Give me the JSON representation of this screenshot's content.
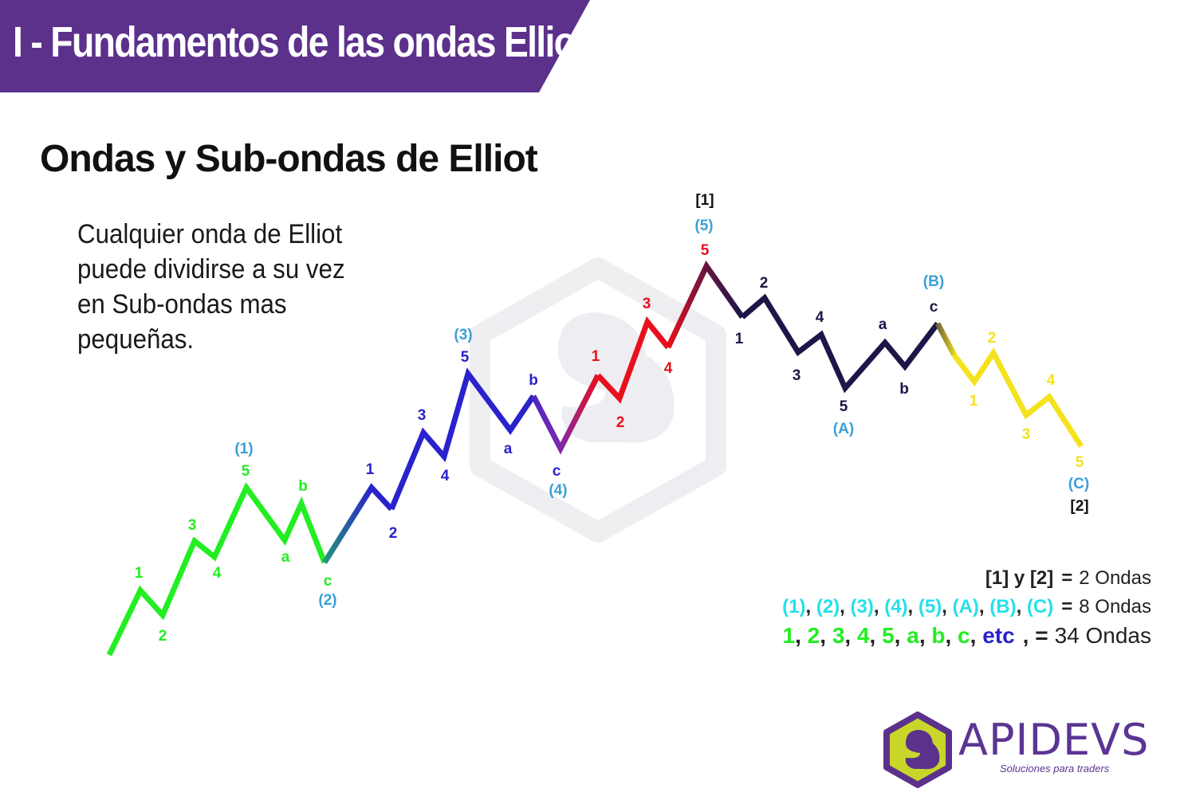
{
  "banner": {
    "title": "I - Fundamentos de las ondas Elliot",
    "color": "#5b318c"
  },
  "subtitle": "Ondas y Sub-ondas de Elliot",
  "description": "Cualquier onda de Elliot puede dividirse a su vez en Sub-ondas mas pequeñas.",
  "colors": {
    "green": "#22ee22",
    "blue": "#2a22cc",
    "red": "#e8101c",
    "navy": "#1c1748",
    "yellow": "#f4e21e",
    "cyan": "#3aa0d8",
    "black": "#111111",
    "purple": "#5b318c"
  },
  "wave_labels": [
    {
      "text": "1",
      "color": "green"
    },
    {
      "text": "2",
      "color": "green"
    },
    {
      "text": "3",
      "color": "green"
    },
    {
      "text": "4",
      "color": "green"
    },
    {
      "text": "5",
      "color": "green"
    },
    {
      "text": "(1)",
      "color": "cyan"
    },
    {
      "text": "a",
      "color": "green"
    },
    {
      "text": "b",
      "color": "green"
    },
    {
      "text": "c",
      "color": "green"
    },
    {
      "text": "(2)",
      "color": "cyan"
    },
    {
      "text": "1",
      "color": "blue"
    },
    {
      "text": "2",
      "color": "blue"
    },
    {
      "text": "3",
      "color": "blue"
    },
    {
      "text": "4",
      "color": "blue"
    },
    {
      "text": "5",
      "color": "blue"
    },
    {
      "text": "(3)",
      "color": "cyan"
    },
    {
      "text": "a",
      "color": "blue"
    },
    {
      "text": "b",
      "color": "blue"
    },
    {
      "text": "c",
      "color": "blue"
    },
    {
      "text": "(4)",
      "color": "cyan"
    },
    {
      "text": "1",
      "color": "red"
    },
    {
      "text": "2",
      "color": "red"
    },
    {
      "text": "3",
      "color": "red"
    },
    {
      "text": "4",
      "color": "red"
    },
    {
      "text": "5",
      "color": "red"
    },
    {
      "text": "(5)",
      "color": "cyan"
    },
    {
      "text": "[1]",
      "color": "black"
    },
    {
      "text": "1",
      "color": "navy"
    },
    {
      "text": "2",
      "color": "navy"
    },
    {
      "text": "3",
      "color": "navy"
    },
    {
      "text": "4",
      "color": "navy"
    },
    {
      "text": "5",
      "color": "navy"
    },
    {
      "text": "(A)",
      "color": "cyan"
    },
    {
      "text": "a",
      "color": "navy"
    },
    {
      "text": "b",
      "color": "navy"
    },
    {
      "text": "c",
      "color": "navy"
    },
    {
      "text": "(B)",
      "color": "cyan"
    },
    {
      "text": "1",
      "color": "yellow"
    },
    {
      "text": "2",
      "color": "yellow"
    },
    {
      "text": "3",
      "color": "yellow"
    },
    {
      "text": "4",
      "color": "yellow"
    },
    {
      "text": "5",
      "color": "yellow"
    },
    {
      "text": "(C)",
      "color": "cyan"
    },
    {
      "text": "[2]",
      "color": "black"
    }
  ],
  "summary": {
    "row1": {
      "lhs": "[1] y [2]",
      "eq": "=",
      "total": "2 Ondas"
    },
    "row2": {
      "items": [
        "(1)",
        "(2)",
        "(3)",
        "(4)",
        "(5)",
        "(A)",
        "(B)",
        "(C)"
      ],
      "eq": "=",
      "total": "8 Ondas"
    },
    "row3": {
      "items": [
        {
          "text": "1",
          "color": "green"
        },
        {
          "text": "2",
          "color": "green"
        },
        {
          "text": "3",
          "color": "green"
        },
        {
          "text": "4",
          "color": "green"
        },
        {
          "text": "5",
          "color": "green"
        },
        {
          "text": "a",
          "color": "green"
        },
        {
          "text": "b",
          "color": "green"
        },
        {
          "text": "c",
          "color": "green"
        },
        {
          "text": "etc",
          "color": "blue"
        }
      ],
      "eq": ",  =",
      "total": "34 Ondas"
    }
  },
  "logo": {
    "name": "APIDEVS",
    "tagline": "Soluciones para traders"
  }
}
